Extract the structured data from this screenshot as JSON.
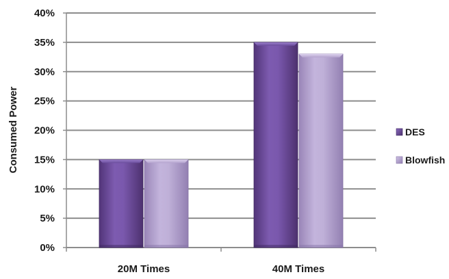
{
  "chart_data": {
    "type": "bar",
    "title": "",
    "xlabel": "",
    "ylabel": "Consumed Power",
    "categories": [
      "20M Times",
      "40M Times"
    ],
    "series": [
      {
        "name": "DES",
        "values": [
          15,
          35
        ],
        "color": "#6a4c9c"
      },
      {
        "name": "Blowfish",
        "values": [
          15,
          33
        ],
        "color": "#b3a2cd"
      }
    ],
    "y_ticks": [
      "0%",
      "5%",
      "10%",
      "15%",
      "20%",
      "25%",
      "30%",
      "35%",
      "40%"
    ],
    "ylim": [
      0,
      40
    ],
    "y_unit": "%",
    "grid": true,
    "legend_position": "right"
  }
}
